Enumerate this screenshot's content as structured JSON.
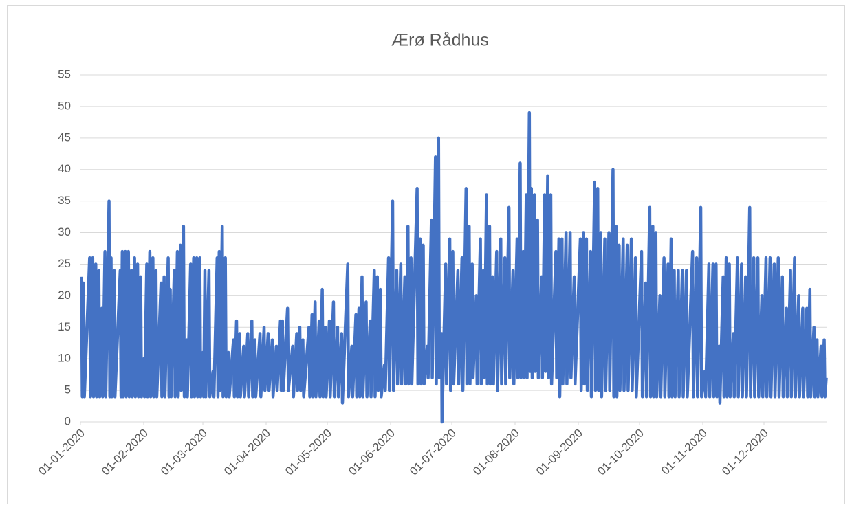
{
  "chart_data": {
    "type": "line",
    "title": "Ærø Rådhus",
    "xlim": [
      0,
      366
    ],
    "xticks": [
      {
        "value": 0,
        "label": "01-01-2020"
      },
      {
        "value": 31,
        "label": "01-02-2020"
      },
      {
        "value": 60,
        "label": "01-03-2020"
      },
      {
        "value": 91,
        "label": "01-04-2020"
      },
      {
        "value": 121,
        "label": "01-05-2020"
      },
      {
        "value": 152,
        "label": "01-06-2020"
      },
      {
        "value": 182,
        "label": "01-07-2020"
      },
      {
        "value": 213,
        "label": "01-08-2020"
      },
      {
        "value": 244,
        "label": "01-09-2020"
      },
      {
        "value": 274,
        "label": "01-10-2020"
      },
      {
        "value": 305,
        "label": "01-11-2020"
      },
      {
        "value": 335,
        "label": "01-12-2020"
      }
    ],
    "ylim": [
      0,
      55
    ],
    "yticks": [
      0,
      5,
      10,
      15,
      20,
      25,
      30,
      35,
      40,
      45,
      50,
      55
    ],
    "grid": true,
    "series": [
      {
        "color": "#4472c4",
        "x": [
          0.5,
          0.9,
          1.5,
          1.9,
          4.5,
          4.9,
          6,
          6.4,
          7.5,
          7.9,
          9,
          9.4,
          10.5,
          10.9,
          12,
          12.4,
          14,
          14.4,
          15,
          15.4,
          16.5,
          16.9,
          19.5,
          19.9,
          20.5,
          20.9,
          22,
          22.4,
          23.5,
          23.9,
          25,
          25.4,
          26.5,
          26.9,
          28,
          28.4,
          29.5,
          29.9,
          31,
          31.4,
          32.5,
          32.9,
          34,
          34.4,
          35.5,
          35.9,
          37,
          37.4,
          39.5,
          39.9,
          41,
          41.4,
          43,
          43.4,
          44,
          44.4,
          46,
          46.4,
          47.5,
          47.9,
          49,
          49.4,
          50.5,
          50.9,
          52,
          52.4,
          54,
          54.4,
          55.5,
          55.9,
          57,
          57.4,
          58.5,
          58.9,
          60,
          60.4,
          61,
          61.4,
          63,
          63.4,
          65,
          65.4,
          67,
          67.4,
          68,
          68.4,
          69.5,
          69.9,
          71,
          71.4,
          72.5,
          72.9,
          75,
          75.4,
          76.5,
          76.9,
          78,
          78.4,
          80,
          80.4,
          82,
          82.4,
          84,
          84.4,
          85.5,
          85.9,
          88,
          88.4,
          90,
          90.4,
          92,
          92.4,
          94,
          94.4,
          96,
          96.4,
          98,
          98.4,
          99,
          99.4,
          101.5,
          101.9,
          104,
          104.4,
          106,
          106.4,
          107.5,
          107.9,
          109,
          109.4,
          112,
          112.4,
          113.5,
          113.9,
          115,
          115.4,
          117,
          117.4,
          118.5,
          118.9,
          120,
          120.4,
          122,
          122.4,
          124,
          124.4,
          126,
          126.4,
          128,
          128.4,
          131,
          131.4,
          133,
          133.4,
          135,
          135.4,
          136.5,
          136.9,
          138,
          138.4,
          140,
          140.4,
          142,
          142.4,
          144,
          144.4,
          145.5,
          145.9,
          147,
          147.4,
          149,
          149.4,
          151,
          151.4,
          153,
          153.4,
          155,
          155.4,
          157,
          157.4,
          159,
          159.4,
          160.5,
          160.9,
          162,
          162.4,
          165,
          165.4,
          166.5,
          166.9,
          168,
          168.4,
          170,
          170.4,
          172,
          172.4,
          174,
          174.4,
          175.5,
          175.9,
          177,
          177.2,
          179,
          179.4,
          181,
          181.4,
          182.5,
          182.9,
          185,
          185.4,
          187,
          187.4,
          189,
          189.4,
          190.5,
          190.9,
          192,
          192.4,
          194,
          194.4,
          196,
          196.4,
          197.5,
          197.9,
          199,
          199.4,
          200.5,
          200.9,
          202,
          202.4,
          204,
          204.4,
          206,
          206.4,
          208,
          208.4,
          210,
          210.4,
          212,
          212.4,
          214,
          214.4,
          215.5,
          215.9,
          217,
          217.4,
          218.5,
          218.9,
          220,
          220.4,
          221,
          221.4,
          222.5,
          222.9,
          224,
          224.4,
          226,
          226.4,
          227.5,
          227.9,
          229,
          229.4,
          230.5,
          230.9,
          233,
          233.4,
          234.5,
          234.9,
          236,
          236.4,
          238,
          238.4,
          240,
          240.4,
          242,
          242.4,
          245,
          245.4,
          246.5,
          246.9,
          248,
          248.4,
          250,
          250.4,
          252,
          252.4,
          253.5,
          253.9,
          255,
          255.4,
          257,
          257.4,
          259,
          259.4,
          261,
          261.4,
          262.5,
          262.9,
          264,
          264.4,
          266,
          266.4,
          268,
          268.4,
          270,
          270.4,
          272,
          272.4,
          275,
          275.4,
          277,
          277.4,
          279,
          279.4,
          280.5,
          280.9,
          282,
          282.4,
          284,
          284.4,
          286,
          286.4,
          288,
          288.4,
          289.5,
          289.9,
          291,
          291.4,
          293,
          293.4,
          295,
          295.4,
          297,
          297.4,
          300,
          300.4,
          302,
          302.4,
          304,
          304.4,
          306,
          306.4,
          308,
          308.4,
          310,
          310.4,
          311.5,
          311.9,
          313,
          313.4,
          315,
          315.4,
          316.5,
          316.9,
          318,
          318.4,
          320,
          320.4,
          322,
          322.4,
          324,
          324.4,
          326,
          326.4,
          328,
          328.4,
          330,
          330.4,
          332,
          332.4,
          334,
          334.4,
          336,
          336.4,
          338,
          338.4,
          340,
          340.4,
          342,
          342.4,
          344,
          344.4,
          346,
          346.4,
          348,
          348.4,
          350,
          350.4,
          352,
          352.4,
          354,
          354.4,
          356,
          356.4,
          357.5,
          357.9,
          359.5,
          359.9,
          361,
          361.4,
          363,
          363.4,
          364.5,
          364.9,
          365.5
        ],
        "values": [
          23,
          4,
          22,
          4,
          26,
          4,
          26,
          4,
          25,
          4,
          24,
          4,
          18,
          4,
          27,
          4,
          35,
          4,
          26,
          4,
          24,
          4,
          24,
          4,
          27,
          4,
          27,
          4,
          27,
          4,
          24,
          4,
          26,
          4,
          25,
          4,
          23,
          4,
          10,
          4,
          25,
          4,
          27,
          4,
          26,
          4,
          24,
          4,
          22,
          4,
          23,
          4,
          26,
          4,
          21,
          4,
          24,
          4,
          27,
          4,
          28,
          5,
          31,
          4,
          13,
          4,
          25,
          4,
          26,
          4,
          26,
          4,
          26,
          4,
          11,
          4,
          24,
          4,
          24,
          4,
          8,
          4,
          26,
          4,
          27,
          5,
          31,
          4,
          26,
          4,
          11,
          4,
          13,
          4,
          16,
          4,
          14,
          4,
          12,
          4,
          14,
          4,
          16,
          4,
          13,
          4,
          14,
          4,
          15,
          5,
          14,
          5,
          13,
          4,
          12,
          5,
          16,
          5,
          16,
          5,
          18,
          5,
          12,
          4,
          14,
          5,
          15,
          5,
          13,
          4,
          15,
          4,
          17,
          4,
          19,
          4,
          16,
          4,
          21,
          4,
          15,
          4,
          16,
          4,
          19,
          4,
          15,
          4,
          14,
          3,
          25,
          4,
          12,
          4,
          17,
          4,
          18,
          4,
          23,
          4,
          19,
          4,
          16,
          4,
          24,
          4,
          23,
          5,
          21,
          4,
          9,
          5,
          26,
          5,
          35,
          5,
          24,
          6,
          25,
          6,
          23,
          6,
          31,
          6,
          26,
          6,
          37,
          6,
          29,
          6,
          28,
          6,
          12,
          7,
          32,
          7,
          42,
          6,
          45,
          7,
          14,
          0,
          25,
          6,
          29,
          5,
          27,
          6,
          24,
          6,
          26,
          5,
          37,
          6,
          31,
          6,
          25,
          7,
          20,
          6,
          29,
          6,
          24,
          7,
          36,
          6,
          31,
          6,
          23,
          6,
          27,
          5,
          29,
          6,
          26,
          6,
          34,
          7,
          24,
          6,
          29,
          7,
          41,
          7,
          27,
          7,
          36,
          7,
          49,
          8,
          37,
          7,
          36,
          8,
          32,
          7,
          23,
          7,
          36,
          8,
          39,
          7,
          36,
          6,
          27,
          7,
          29,
          4,
          29,
          6,
          30,
          6,
          30,
          7,
          23,
          6,
          29,
          5,
          30,
          6,
          29,
          5,
          27,
          4,
          38,
          5,
          37,
          5,
          30,
          4,
          29,
          5,
          30,
          5,
          40,
          4,
          31,
          4,
          28,
          5,
          29,
          5,
          28,
          5,
          29,
          5,
          26,
          4,
          27,
          4,
          22,
          4,
          34,
          4,
          31,
          4,
          30,
          4,
          20,
          4,
          26,
          4,
          25,
          4,
          29,
          4,
          24,
          4,
          24,
          4,
          24,
          4,
          24,
          4,
          27,
          4,
          26,
          4,
          34,
          4,
          8,
          4,
          25,
          4,
          25,
          4,
          25,
          4,
          12,
          3,
          23,
          4,
          26,
          4,
          25,
          4,
          14,
          4,
          26,
          4,
          25,
          4,
          23,
          4,
          34,
          4,
          26,
          4,
          26,
          4,
          20,
          4,
          26,
          4,
          26,
          4,
          25,
          4,
          26,
          4,
          23,
          4,
          18,
          4,
          24,
          4,
          26,
          4,
          20,
          4,
          18,
          4,
          18,
          4,
          21,
          4,
          15,
          4,
          13,
          4,
          12,
          4,
          13,
          4,
          7
        ]
      }
    ]
  }
}
